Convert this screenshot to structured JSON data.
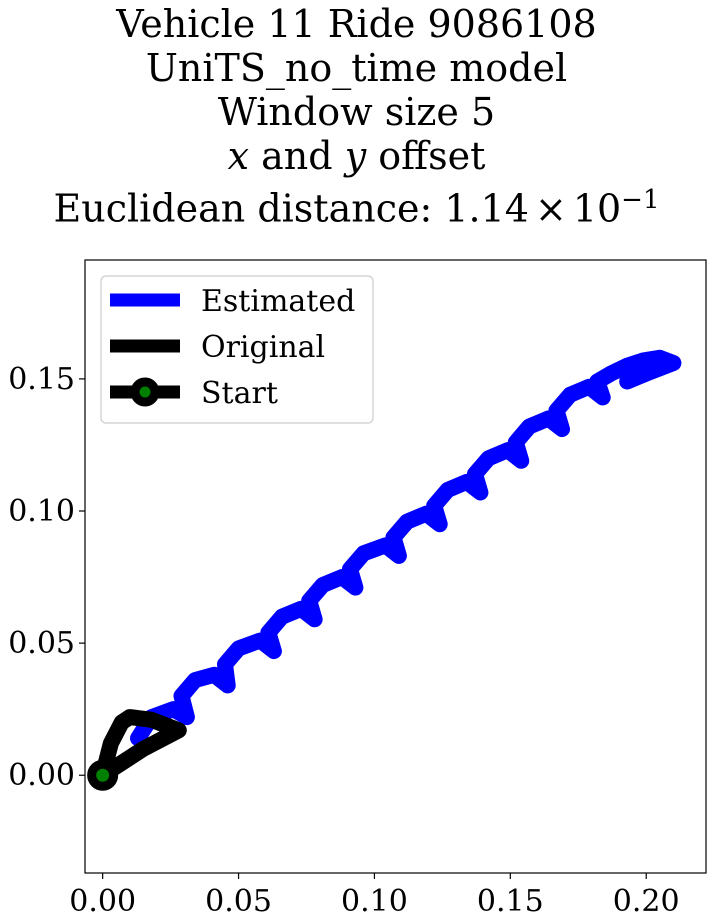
{
  "chart_data": {
    "type": "line",
    "title": "Vehicle 11 Ride 9086108",
    "subtitle_lines": [
      "UniTS_no_time model",
      "Window size 5"
    ],
    "offset_line": {
      "x_var": "x",
      "mid": " and ",
      "y_var": "y",
      "tail": " offset"
    },
    "distance_line": {
      "prefix": "Euclidean distance: ",
      "mantissa": "1.14",
      "times": "×",
      "base": "10",
      "exponent": "−1"
    },
    "xlim": [
      -0.0065,
      0.222
    ],
    "ylim": [
      -0.037,
      0.195
    ],
    "x_ticks": [
      0.0,
      0.05,
      0.1,
      0.15,
      0.2
    ],
    "x_tick_labels": [
      "0.00",
      "0.05",
      "0.10",
      "0.15",
      "0.20"
    ],
    "y_ticks": [
      0.0,
      0.05,
      0.1,
      0.15
    ],
    "y_tick_labels": [
      "0.00",
      "0.05",
      "0.10",
      "0.15"
    ],
    "grid": false,
    "legend_position": "upper-left",
    "series": [
      {
        "name": "Estimated",
        "color": "#0000ff",
        "x": [
          0.013,
          0.018,
          0.026,
          0.031,
          0.029,
          0.034,
          0.041,
          0.046,
          0.045,
          0.05,
          0.058,
          0.063,
          0.061,
          0.066,
          0.073,
          0.078,
          0.076,
          0.081,
          0.088,
          0.093,
          0.091,
          0.096,
          0.104,
          0.109,
          0.107,
          0.112,
          0.119,
          0.124,
          0.122,
          0.127,
          0.134,
          0.139,
          0.137,
          0.142,
          0.149,
          0.154,
          0.152,
          0.157,
          0.164,
          0.169,
          0.167,
          0.172,
          0.179,
          0.184,
          0.182,
          0.187,
          0.193,
          0.199,
          0.205,
          0.21,
          0.2,
          0.193
        ],
        "y": [
          0.014,
          0.022,
          0.025,
          0.022,
          0.03,
          0.036,
          0.038,
          0.034,
          0.042,
          0.048,
          0.051,
          0.047,
          0.054,
          0.06,
          0.063,
          0.059,
          0.066,
          0.072,
          0.075,
          0.071,
          0.078,
          0.084,
          0.087,
          0.083,
          0.09,
          0.096,
          0.099,
          0.095,
          0.102,
          0.108,
          0.111,
          0.107,
          0.114,
          0.12,
          0.123,
          0.119,
          0.126,
          0.132,
          0.135,
          0.131,
          0.138,
          0.144,
          0.147,
          0.143,
          0.149,
          0.152,
          0.155,
          0.157,
          0.158,
          0.156,
          0.152,
          0.149
        ]
      },
      {
        "name": "Original",
        "color": "#000000",
        "x": [
          0.0,
          0.003,
          0.007,
          0.01,
          0.018,
          0.028,
          0.015,
          0.0
        ],
        "y": [
          0.0,
          0.012,
          0.02,
          0.022,
          0.021,
          0.017,
          0.01,
          0.0
        ]
      }
    ],
    "start_point": {
      "name": "Start",
      "x": 0.0,
      "y": 0.0,
      "edge_color": "#000000",
      "fill_color": "#008000"
    }
  }
}
